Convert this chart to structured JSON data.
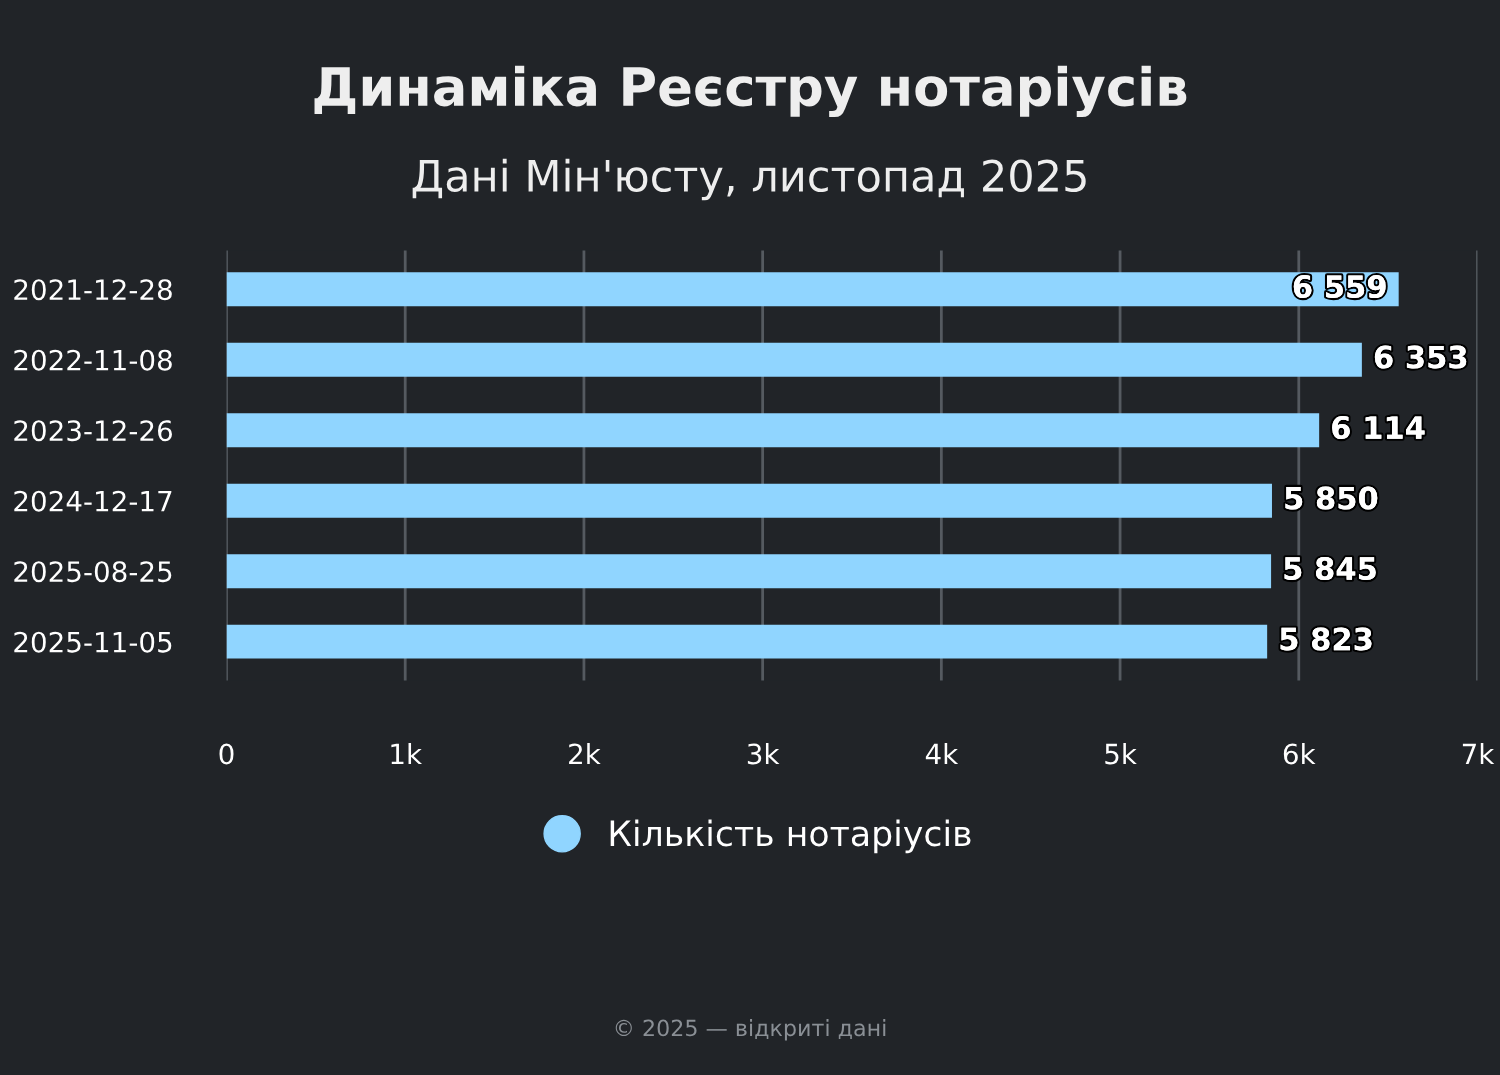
{
  "chart_data": {
    "type": "bar",
    "orientation": "horizontal",
    "title": "Динаміка Реєстру нотаріусів",
    "subtitle": "Дані Мін'юсту, листопад 2025",
    "categories": [
      "2021-12-28",
      "2022-11-08",
      "2023-12-26",
      "2024-12-17",
      "2025-08-25",
      "2025-11-05"
    ],
    "series": [
      {
        "name": "Кількість нотаріусів",
        "color": "#90d5ff",
        "values": [
          6559,
          6353,
          6114,
          5850,
          5845,
          5823
        ],
        "value_labels": [
          "6 559",
          "6 353",
          "6 114",
          "5 850",
          "5 845",
          "5 823"
        ]
      }
    ],
    "xlim": [
      0,
      7000
    ],
    "xticks": [
      0,
      {
        "value": 1000,
        "label": "1k"
      },
      {
        "value": 2000,
        "label": "2k"
      },
      {
        "value": 3000,
        "label": "3k"
      },
      {
        "value": 4000,
        "label": "4k"
      },
      {
        "value": 5000,
        "label": "5k"
      },
      {
        "value": 6000,
        "label": "6k"
      },
      {
        "value": 7000,
        "label": "7k"
      }
    ],
    "grid": "x",
    "legend": "bottom",
    "marker": "circle",
    "annotations": [
      "© 2025 — відкриті дані"
    ]
  }
}
